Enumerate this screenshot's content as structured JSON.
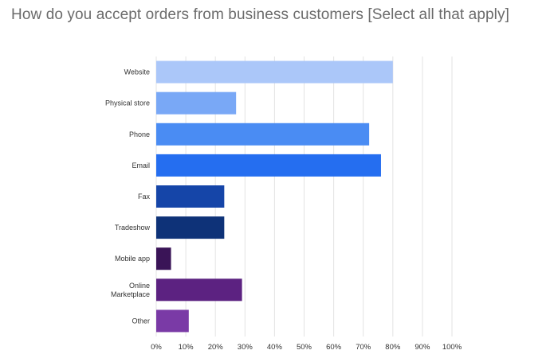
{
  "title": "How do you accept orders from business customers [Select all that apply]",
  "chart_data": {
    "type": "bar",
    "orientation": "horizontal",
    "title": "How do you accept orders from business customers [Select all that apply]",
    "categories": [
      "Website",
      "Physical store",
      "Phone",
      "Email",
      "Fax",
      "Tradeshow",
      "Mobile app",
      "Online Marketplace",
      "Other"
    ],
    "values": [
      80,
      27,
      72,
      76,
      23,
      23,
      5,
      29,
      11
    ],
    "colors": [
      "#abc7f9",
      "#79a8f6",
      "#4a8cf3",
      "#256ef0",
      "#1545a8",
      "#0e3278",
      "#3a1457",
      "#5c2281",
      "#7a3aa6"
    ],
    "xlim": [
      0,
      100
    ],
    "x_ticks": [
      "0%",
      "10%",
      "20%",
      "30%",
      "40%",
      "50%",
      "60%",
      "70%",
      "80%",
      "90%",
      "100%"
    ],
    "grid": "vertical",
    "xlabel": "",
    "ylabel": ""
  }
}
